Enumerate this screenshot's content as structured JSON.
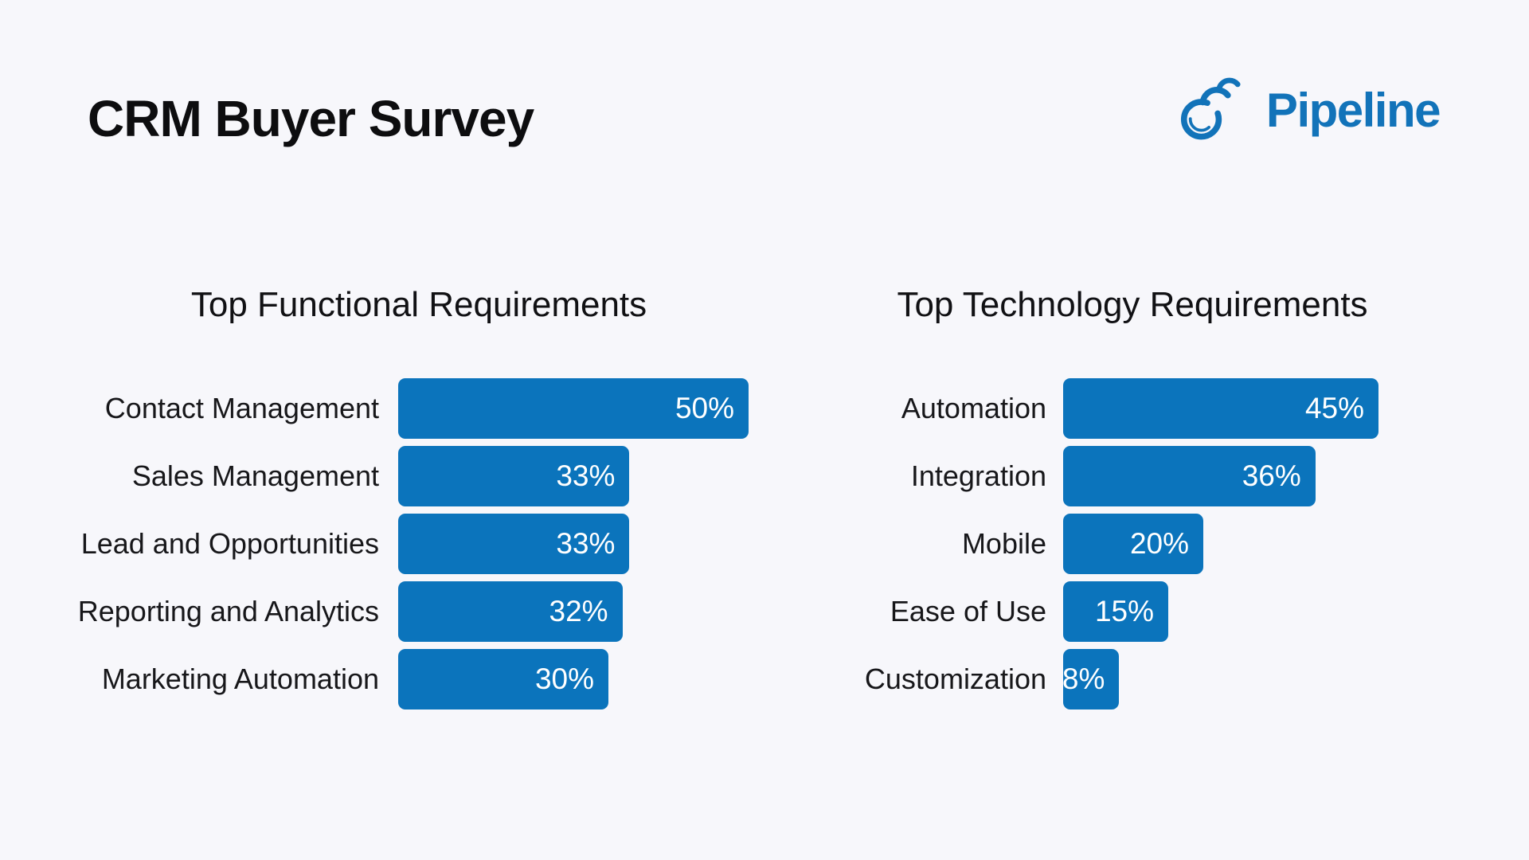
{
  "page": {
    "title": "CRM Buyer Survey",
    "background_color": "#f7f7fb"
  },
  "logo": {
    "text": "Pipeline",
    "icon": "pipeline-swirl-icon",
    "color": "#1273b9"
  },
  "colors": {
    "bar": "#0b74bc",
    "bar_label": "#ffffff",
    "title_text": "#0d0d0f",
    "label_text": "#17171a"
  },
  "chart_data": [
    {
      "type": "bar",
      "orientation": "horizontal",
      "title": "Top Functional Requirements",
      "categories": [
        "Contact Management",
        "Sales Management",
        "Lead and Opportunities",
        "Reporting and Analytics",
        "Marketing Automation"
      ],
      "values": [
        50,
        33,
        33,
        32,
        30
      ],
      "data_labels": [
        "50%",
        "33%",
        "33%",
        "32%",
        "30%"
      ],
      "value_suffix": "%",
      "xlim": [
        0,
        50
      ],
      "grid": false,
      "legend": "none",
      "data_label_position": "inside-end"
    },
    {
      "type": "bar",
      "orientation": "horizontal",
      "title": "Top Technology Requirements",
      "categories": [
        "Automation",
        "Integration",
        "Mobile",
        "Ease of Use",
        "Customization"
      ],
      "values": [
        45,
        36,
        20,
        15,
        8
      ],
      "data_labels": [
        "45%",
        "36%",
        "20%",
        "15%",
        "8%"
      ],
      "value_suffix": "%",
      "xlim": [
        0,
        50
      ],
      "grid": false,
      "legend": "none",
      "data_label_position": "inside-end"
    }
  ]
}
